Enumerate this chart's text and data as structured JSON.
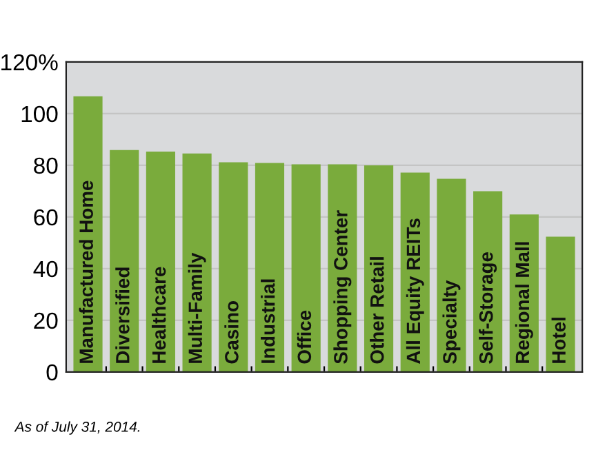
{
  "chart_data": {
    "type": "bar",
    "categories": [
      "Manufactured Home",
      "Diversified",
      "Healthcare",
      "Multi-Family",
      "Casino",
      "Industrial",
      "Office",
      "Shopping Center",
      "Other Retail",
      "All Equity REITs",
      "Specialty",
      "Self-Storage",
      "Regional Mall",
      "Hotel"
    ],
    "values": [
      106.7,
      85.9,
      85.3,
      84.6,
      81.2,
      80.9,
      80.4,
      80.4,
      80.0,
      77.2,
      74.8,
      70.0,
      61.0,
      52.4
    ],
    "color": "#7aab3c",
    "ylim": [
      0,
      120
    ],
    "yticks": [
      0,
      20,
      40,
      60,
      80,
      100,
      {
        "value": 120,
        "label": "120%"
      }
    ],
    "grid": "y",
    "annotations": [
      "As of July 31, 2014."
    ]
  }
}
